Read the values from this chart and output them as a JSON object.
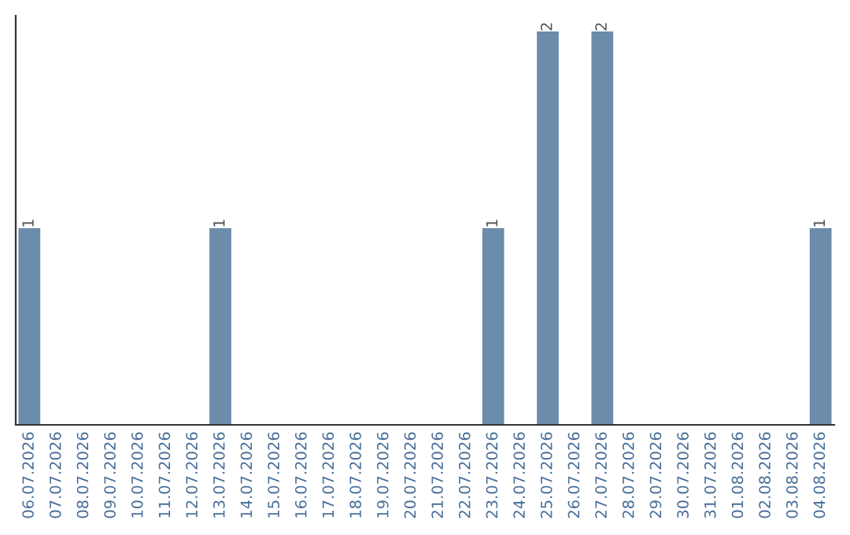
{
  "chart_data": {
    "type": "bar",
    "categories": [
      "06.07.2026",
      "07.07.2026",
      "08.07.2026",
      "09.07.2026",
      "10.07.2026",
      "11.07.2026",
      "12.07.2026",
      "13.07.2026",
      "14.07.2026",
      "15.07.2026",
      "16.07.2026",
      "17.07.2026",
      "18.07.2026",
      "19.07.2026",
      "20.07.2026",
      "21.07.2026",
      "22.07.2026",
      "23.07.2026",
      "24.07.2026",
      "25.07.2026",
      "26.07.2026",
      "27.07.2026",
      "28.07.2026",
      "29.07.2026",
      "30.07.2026",
      "31.07.2026",
      "01.08.2026",
      "02.08.2026",
      "03.08.2026",
      "04.08.2026"
    ],
    "values": [
      1,
      0,
      0,
      0,
      0,
      0,
      0,
      1,
      0,
      0,
      0,
      0,
      0,
      0,
      0,
      0,
      0,
      1,
      0,
      2,
      0,
      2,
      0,
      0,
      0,
      0,
      0,
      0,
      0,
      1
    ],
    "value_labels": [
      "1",
      null,
      null,
      null,
      null,
      null,
      null,
      "1",
      null,
      null,
      null,
      null,
      null,
      null,
      null,
      null,
      null,
      "1",
      null,
      "2",
      null,
      "2",
      null,
      null,
      null,
      null,
      null,
      null,
      null,
      "1"
    ],
    "color": "#6b8cab",
    "tick_labels": "x",
    "grid": false,
    "legend": false
  }
}
